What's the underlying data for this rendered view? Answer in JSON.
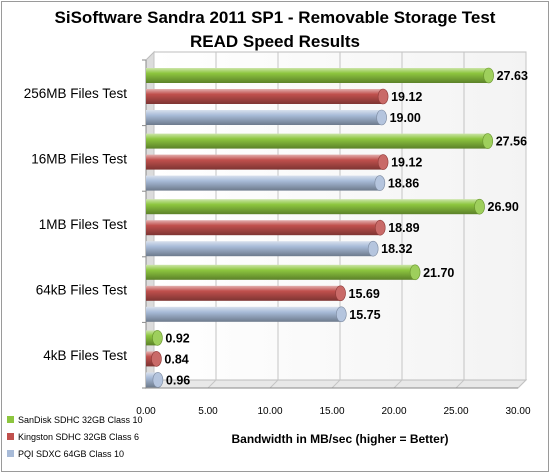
{
  "chart_data": {
    "type": "bar",
    "orientation": "horizontal",
    "title": "SiSoftware Sandra 2011 SP1 - Removable Storage Test",
    "subtitle": "READ Speed Results",
    "categories": [
      "256MB Files Test",
      "16MB Files Test",
      "1MB Files Test",
      "64kB Files Test",
      "4kB Files Test"
    ],
    "series": [
      {
        "name": "SanDisk SDHC 32GB Class 10",
        "color": "#8dc63f",
        "values": [
          27.63,
          27.56,
          26.9,
          21.7,
          0.92
        ]
      },
      {
        "name": "Kingston SDHC 32GB Class 6",
        "color": "#c0504d",
        "values": [
          19.12,
          19.12,
          18.89,
          15.69,
          0.84
        ]
      },
      {
        "name": "PQI SDXC 64GB Class 10",
        "color": "#a8bbd8",
        "values": [
          19.0,
          18.86,
          18.32,
          15.75,
          0.96
        ]
      }
    ],
    "value_labels": [
      [
        "27.63",
        "27.56",
        "26.90",
        "21.70",
        "0.92"
      ],
      [
        "19.12",
        "19.12",
        "18.89",
        "15.69",
        "0.84"
      ],
      [
        "19.00",
        "18.86",
        "18.32",
        "15.75",
        "0.96"
      ]
    ],
    "xlim": [
      0,
      30
    ],
    "xticks": [
      "0.00",
      "5.00",
      "10.00",
      "15.00",
      "20.00",
      "25.00",
      "30.00"
    ],
    "xlabel": "Bandwidth in MB/sec (higher = Better)",
    "ylabel": "",
    "grid": true,
    "legend_position": "bottom-left"
  }
}
